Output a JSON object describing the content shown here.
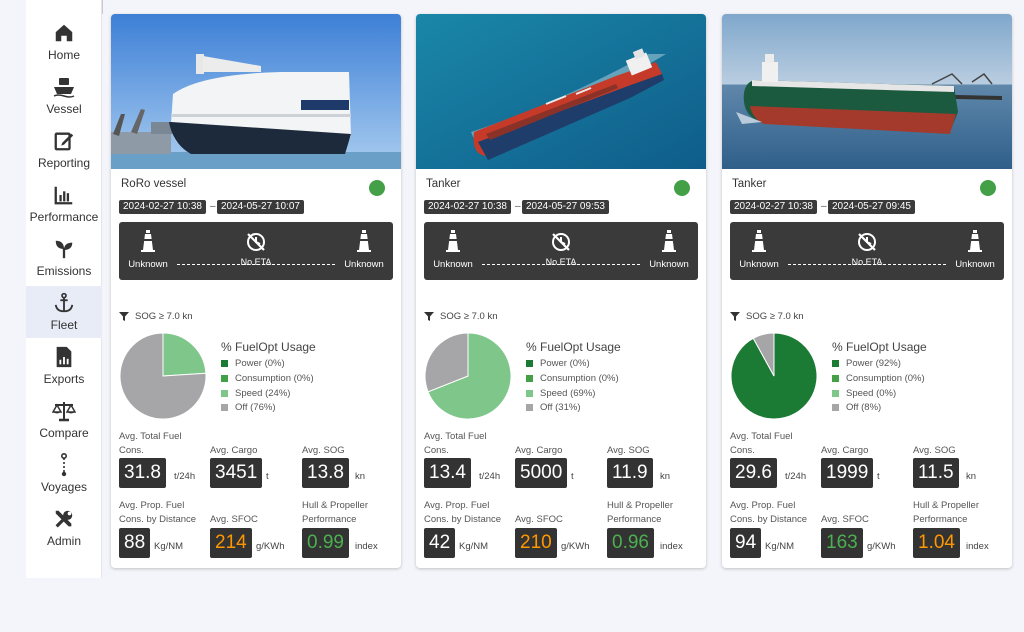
{
  "nav": [
    {
      "label": "Home",
      "icon": "home-icon"
    },
    {
      "label": "Vessel",
      "icon": "vessel-icon"
    },
    {
      "label": "Reporting",
      "icon": "edit-icon"
    },
    {
      "label": "Performance",
      "icon": "bar-chart-icon"
    },
    {
      "label": "Emissions",
      "icon": "sprout-icon"
    },
    {
      "label": "Fleet",
      "icon": "anchor-icon",
      "active": true
    },
    {
      "label": "Exports",
      "icon": "report-icon"
    },
    {
      "label": "Compare",
      "icon": "scale-icon"
    },
    {
      "label": "Voyages",
      "icon": "voyage-icon"
    },
    {
      "label": "Admin",
      "icon": "tools-icon"
    }
  ],
  "cards": [
    {
      "type": "RoRo vessel",
      "photo": "roro",
      "start": "2024-02-27 10:38",
      "end": "2024-05-27 10:07",
      "from": "Unknown",
      "to": "Unknown",
      "eta": "No ETA",
      "filter": "SOG ≥ 7.0 kn",
      "usage_title": "% FuelOpt Usage",
      "usage": [
        {
          "label": "Power (0%)",
          "value": 0,
          "color": "#1b7a34"
        },
        {
          "label": "Consumption (0%)",
          "value": 0,
          "color": "#43a047"
        },
        {
          "label": "Speed (24%)",
          "value": 24,
          "color": "#7ec68a"
        },
        {
          "label": "Off (76%)",
          "value": 76,
          "color": "#a6a6a9"
        }
      ],
      "metrics": {
        "fuel_label": "Avg. Total Fuel Cons.",
        "fuel": "31.8",
        "fuel_unit": "t/24h",
        "cargo_label": "Avg. Cargo",
        "cargo": "3451",
        "cargo_unit": "t",
        "sog_label": "Avg. SOG",
        "sog": "13.8",
        "sog_unit": "kn",
        "prop_label_1": "Avg. Prop. Fuel",
        "prop_label_2": "Cons. by Distance",
        "prop": "88",
        "prop_unit": "Kg/NM",
        "sfoc_label": "Avg. SFOC",
        "sfoc": "214",
        "sfoc_unit": "g/KWh",
        "sfoc_color": "orange",
        "hull_label_1": "Hull & Propeller",
        "hull_label_2": "Performance",
        "hull": "0.99",
        "hull_unit": "index",
        "hull_color": "green"
      }
    },
    {
      "type": "Tanker",
      "photo": "tanker",
      "start": "2024-02-27 10:38",
      "end": "2024-05-27 09:53",
      "from": "Unknown",
      "to": "Unknown",
      "eta": "No ETA",
      "filter": "SOG ≥ 7.0 kn",
      "usage_title": "% FuelOpt Usage",
      "usage": [
        {
          "label": "Power (0%)",
          "value": 0,
          "color": "#1b7a34"
        },
        {
          "label": "Consumption (0%)",
          "value": 0,
          "color": "#43a047"
        },
        {
          "label": "Speed (69%)",
          "value": 69,
          "color": "#7ec68a"
        },
        {
          "label": "Off (31%)",
          "value": 31,
          "color": "#a6a6a9"
        }
      ],
      "metrics": {
        "fuel_label": "Avg. Total Fuel Cons.",
        "fuel": "13.4",
        "fuel_unit": "t/24h",
        "cargo_label": "Avg. Cargo",
        "cargo": "5000",
        "cargo_unit": "t",
        "sog_label": "Avg. SOG",
        "sog": "11.9",
        "sog_unit": "kn",
        "prop_label_1": "Avg. Prop. Fuel",
        "prop_label_2": "Cons. by Distance",
        "prop": "42",
        "prop_unit": "Kg/NM",
        "sfoc_label": "Avg. SFOC",
        "sfoc": "210",
        "sfoc_unit": "g/KWh",
        "sfoc_color": "orange",
        "hull_label_1": "Hull & Propeller",
        "hull_label_2": "Performance",
        "hull": "0.96",
        "hull_unit": "index",
        "hull_color": "green"
      }
    },
    {
      "type": "Tanker",
      "photo": "tanker-berth",
      "start": "2024-02-27 10:38",
      "end": "2024-05-27 09:45",
      "from": "Unknown",
      "to": "Unknown",
      "eta": "No ETA",
      "filter": "SOG ≥ 7.0 kn",
      "usage_title": "% FuelOpt Usage",
      "usage": [
        {
          "label": "Power (92%)",
          "value": 92,
          "color": "#1b7a34"
        },
        {
          "label": "Consumption (0%)",
          "value": 0,
          "color": "#43a047"
        },
        {
          "label": "Speed (0%)",
          "value": 0,
          "color": "#7ec68a"
        },
        {
          "label": "Off (8%)",
          "value": 8,
          "color": "#a6a6a9"
        }
      ],
      "metrics": {
        "fuel_label": "Avg. Total Fuel Cons.",
        "fuel": "29.6",
        "fuel_unit": "t/24h",
        "cargo_label": "Avg. Cargo",
        "cargo": "1999",
        "cargo_unit": "t",
        "sog_label": "Avg. SOG",
        "sog": "11.5",
        "sog_unit": "kn",
        "prop_label_1": "Avg. Prop. Fuel",
        "prop_label_2": "Cons. by Distance",
        "prop": "94",
        "prop_unit": "Kg/NM",
        "sfoc_label": "Avg. SFOC",
        "sfoc": "163",
        "sfoc_unit": "g/KWh",
        "sfoc_color": "green",
        "hull_label_1": "Hull & Propeller",
        "hull_label_2": "Performance",
        "hull": "1.04",
        "hull_unit": "index",
        "hull_color": "orange"
      }
    }
  ]
}
